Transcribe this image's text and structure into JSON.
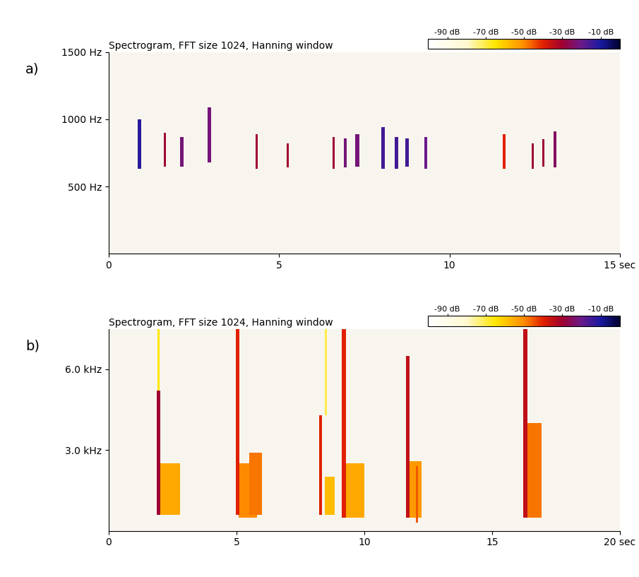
{
  "chart_data": [
    {
      "type": "spectrogram",
      "label": "a)",
      "title": "Spectrogram, FFT size 1024, Hanning window",
      "xlim": [
        0,
        15
      ],
      "xticks": [
        0,
        5,
        10,
        {
          "value": 15,
          "label": "15 sec"
        }
      ],
      "ylim": [
        0,
        1500
      ],
      "yticks": [
        {
          "value": 500,
          "label": "500 Hz"
        },
        {
          "value": 1000,
          "label": "1000 Hz"
        },
        {
          "value": 1500,
          "label": "1500 Hz"
        }
      ],
      "colorbar": {
        "lim": [
          -100,
          0
        ],
        "ticks": [
          {
            "value": -90,
            "label": "-90 dB"
          },
          {
            "value": -70,
            "label": "-70 dB"
          },
          {
            "value": -50,
            "label": "-50 dB"
          },
          {
            "value": -30,
            "label": "-30 dB"
          },
          {
            "value": -10,
            "label": "-10 dB"
          }
        ]
      },
      "events": [
        {
          "time": 0.9,
          "duration": 0.1,
          "low": 630,
          "high": 1000,
          "level": -12
        },
        {
          "time": 1.65,
          "duration": 0.07,
          "low": 650,
          "high": 900,
          "level": -30
        },
        {
          "time": 2.15,
          "duration": 0.09,
          "low": 650,
          "high": 870,
          "level": -22
        },
        {
          "time": 2.95,
          "duration": 0.1,
          "low": 680,
          "high": 1090,
          "level": -22
        },
        {
          "time": 4.35,
          "duration": 0.07,
          "low": 630,
          "high": 890,
          "level": -30
        },
        {
          "time": 5.25,
          "duration": 0.07,
          "low": 640,
          "high": 820,
          "level": -30
        },
        {
          "time": 6.6,
          "duration": 0.07,
          "low": 630,
          "high": 870,
          "level": -30
        },
        {
          "time": 6.95,
          "duration": 0.08,
          "low": 640,
          "high": 860,
          "level": -22
        },
        {
          "time": 7.3,
          "duration": 0.12,
          "low": 650,
          "high": 890,
          "level": -22
        },
        {
          "time": 8.05,
          "duration": 0.1,
          "low": 630,
          "high": 940,
          "level": -15
        },
        {
          "time": 8.45,
          "duration": 0.1,
          "low": 630,
          "high": 870,
          "level": -15
        },
        {
          "time": 8.75,
          "duration": 0.1,
          "low": 650,
          "high": 860,
          "level": -15
        },
        {
          "time": 9.3,
          "duration": 0.09,
          "low": 630,
          "high": 870,
          "level": -20
        },
        {
          "time": 11.6,
          "duration": 0.09,
          "low": 630,
          "high": 890,
          "level": -40
        },
        {
          "time": 12.45,
          "duration": 0.07,
          "low": 630,
          "high": 820,
          "level": -30
        },
        {
          "time": 12.75,
          "duration": 0.07,
          "low": 650,
          "high": 850,
          "level": -30
        },
        {
          "time": 13.1,
          "duration": 0.09,
          "low": 640,
          "high": 910,
          "level": -25
        }
      ]
    },
    {
      "type": "spectrogram",
      "label": "b)",
      "title": "Spectrogram, FFT size 1024, Hanning window",
      "xlim": [
        0,
        20
      ],
      "xticks": [
        0,
        5,
        10,
        15,
        {
          "value": 20,
          "label": "20 sec"
        }
      ],
      "ylim": [
        0,
        7.5
      ],
      "yticks": [
        {
          "value": 3.0,
          "label": "3.0 kHz"
        },
        {
          "value": 6.0,
          "label": "6.0 kHz"
        }
      ],
      "colorbar": {
        "lim": [
          -100,
          0
        ],
        "ticks": [
          {
            "value": -90,
            "label": "-90 dB"
          },
          {
            "value": -70,
            "label": "-70 dB"
          },
          {
            "value": -50,
            "label": "-50 dB"
          },
          {
            "value": -30,
            "label": "-30 dB"
          },
          {
            "value": -10,
            "label": "-10 dB"
          }
        ]
      },
      "events": [
        {
          "time": 2.4,
          "duration": 0.8,
          "low": 0.6,
          "high": 2.5,
          "level": -55
        },
        {
          "time": 1.95,
          "duration": 0.1,
          "low": 5.2,
          "high": 7.5,
          "level": -65
        },
        {
          "time": 1.95,
          "duration": 0.15,
          "low": 0.6,
          "high": 5.2,
          "level": -30
        },
        {
          "time": 5.45,
          "duration": 0.7,
          "low": 0.5,
          "high": 2.5,
          "level": -50
        },
        {
          "time": 5.75,
          "duration": 0.5,
          "low": 0.6,
          "high": 2.9,
          "level": -48
        },
        {
          "time": 5.05,
          "duration": 0.15,
          "low": 0.6,
          "high": 7.5,
          "level": -40
        },
        {
          "time": 8.65,
          "duration": 0.4,
          "low": 0.6,
          "high": 2.0,
          "level": -58
        },
        {
          "time": 8.5,
          "duration": 0.08,
          "low": 4.3,
          "high": 7.5,
          "level": -70
        },
        {
          "time": 8.3,
          "duration": 0.12,
          "low": 0.6,
          "high": 4.3,
          "level": -40
        },
        {
          "time": 9.6,
          "duration": 0.8,
          "low": 0.5,
          "high": 2.5,
          "level": -55
        },
        {
          "time": 9.2,
          "duration": 0.15,
          "low": 0.5,
          "high": 7.5,
          "level": -40
        },
        {
          "time": 11.95,
          "duration": 0.6,
          "low": 0.5,
          "high": 2.6,
          "level": -52
        },
        {
          "time": 12.05,
          "duration": 0.08,
          "low": 0.3,
          "high": 2.4,
          "level": -45
        },
        {
          "time": 11.7,
          "duration": 0.15,
          "low": 0.5,
          "high": 6.5,
          "level": -35
        },
        {
          "time": 16.65,
          "duration": 0.6,
          "low": 0.5,
          "high": 4.0,
          "level": -48
        },
        {
          "time": 16.3,
          "duration": 0.15,
          "low": 0.5,
          "high": 7.5,
          "level": -35
        }
      ]
    }
  ]
}
